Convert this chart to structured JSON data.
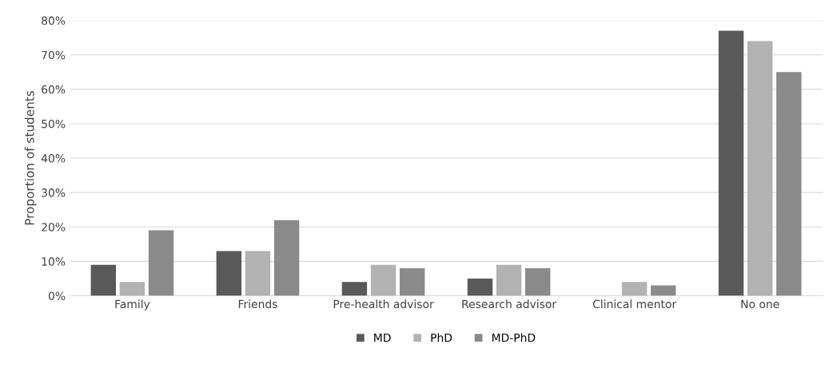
{
  "chart_data": {
    "type": "bar",
    "ylabel": "Proportion of students",
    "categories": [
      "Family",
      "Friends",
      "Pre-health advisor",
      "Research advisor",
      "Clinical mentor",
      "No one"
    ],
    "series": [
      {
        "name": "MD",
        "color": "#595959",
        "values": [
          9,
          13,
          4,
          5,
          0,
          77
        ]
      },
      {
        "name": "PhD",
        "color": "#b2b2b2",
        "values": [
          4,
          13,
          9,
          9,
          4,
          74
        ]
      },
      {
        "name": "MD-PhD",
        "color": "#8a8a8a",
        "values": [
          19,
          22,
          8,
          8,
          3,
          65
        ]
      }
    ],
    "ylim": [
      0,
      80
    ],
    "yticks": [
      {
        "value": 0,
        "label": "0%"
      },
      {
        "value": 10,
        "label": "10%"
      },
      {
        "value": 20,
        "label": "20%"
      },
      {
        "value": 30,
        "label": "30%"
      },
      {
        "value": 40,
        "label": "40%"
      },
      {
        "value": 50,
        "label": "50%"
      },
      {
        "value": 60,
        "label": "60%"
      },
      {
        "value": 70,
        "label": "70%"
      },
      {
        "value": 80,
        "label": "80%"
      }
    ],
    "grid": "y",
    "legend": "bottom"
  }
}
